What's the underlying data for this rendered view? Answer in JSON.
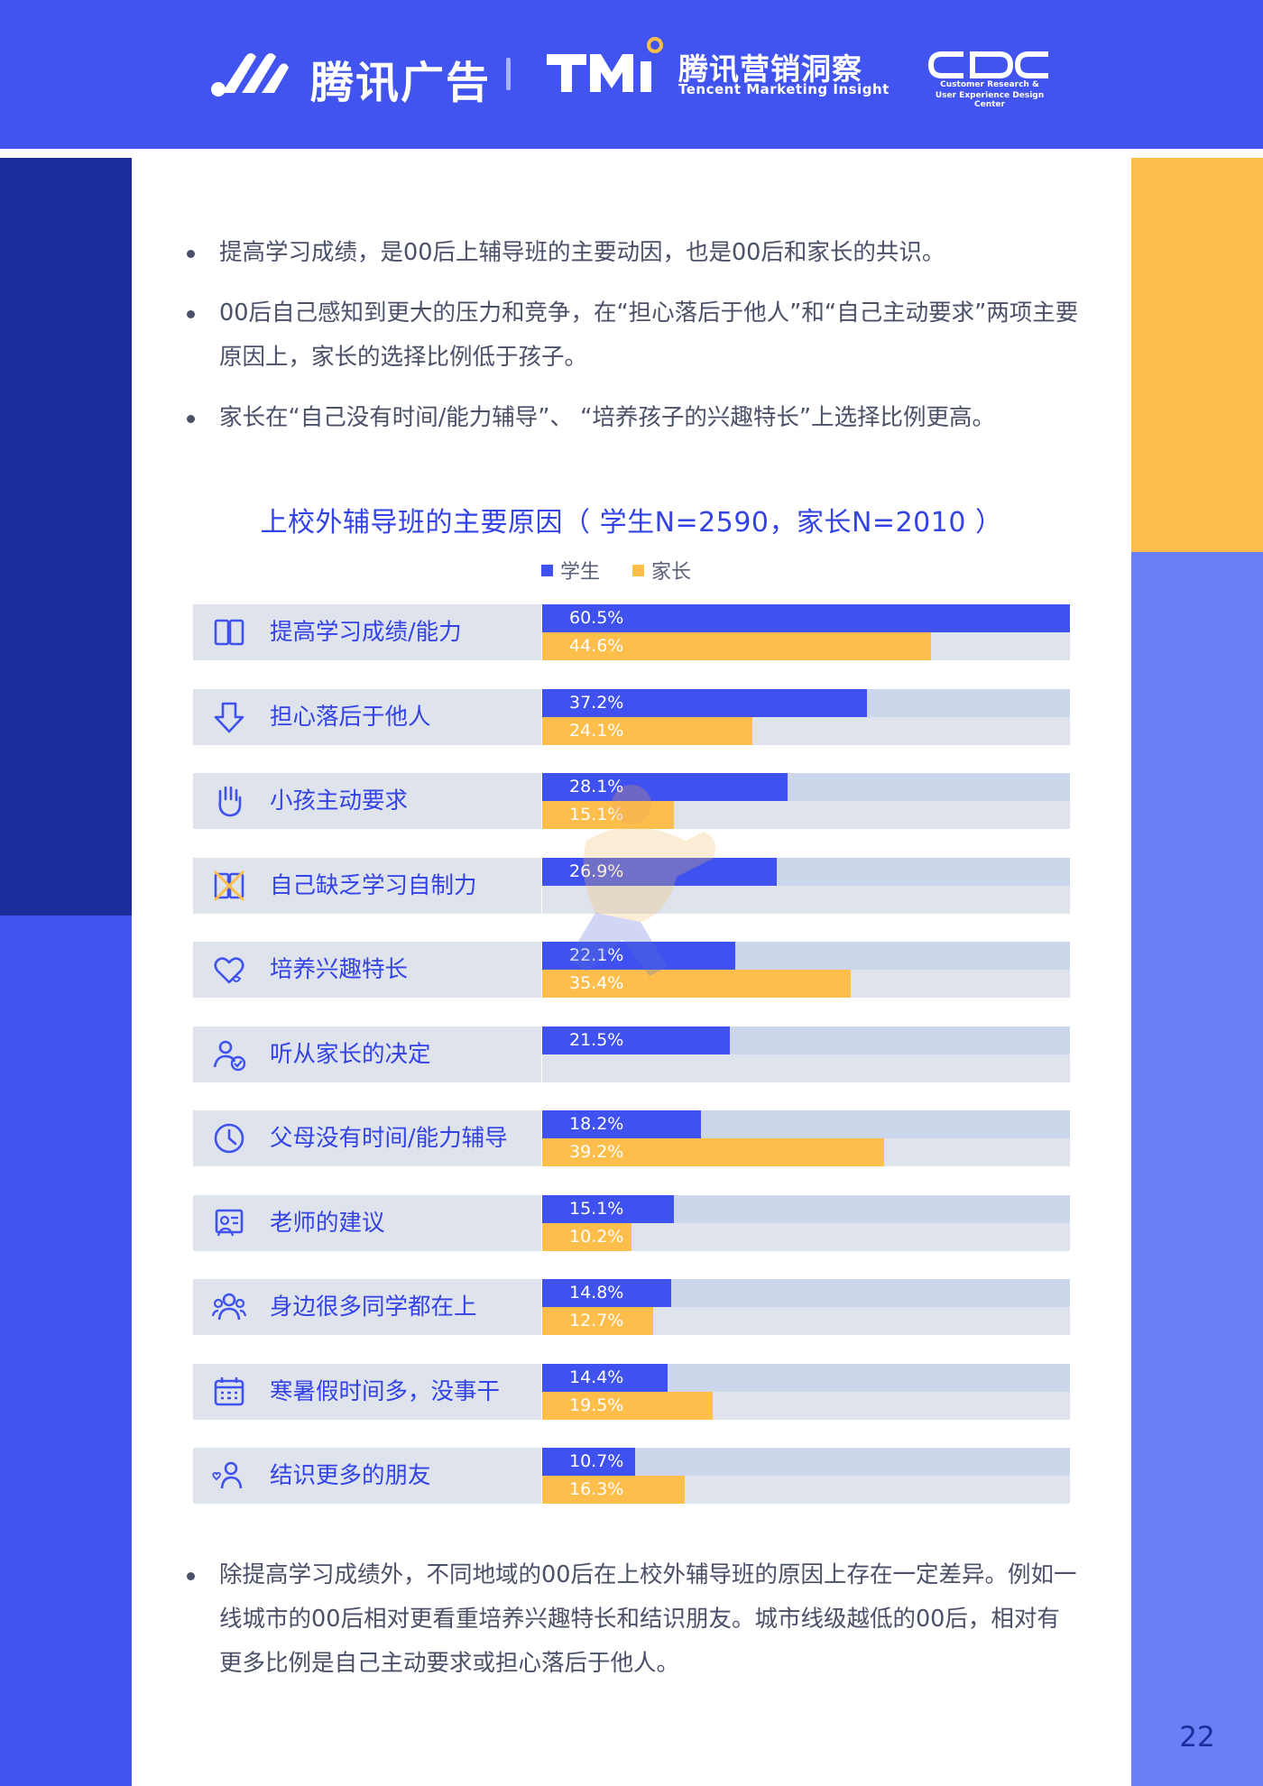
{
  "header": {
    "brand1": "腾讯广告",
    "brand2": "腾讯营销洞察",
    "brand2_sub": "Tencent Marketing Insight",
    "brand3_sub1": "Customer Research &",
    "brand3_sub2": "User Experience Design Center",
    "logo_tmi_text": "TMI",
    "logo_cdc_text": "CDC"
  },
  "bullets_top": [
    "提高学习成绩，是00后上辅导班的主要动因，也是00后和家长的共识。",
    "00后自己感知到更大的压力和竞争，在“担心落后于他人”和“自己主动要求”两项主要原因上，家长的选择比例低于孩子。",
    "家长在“自己没有时间/能力辅导”、 “培养孩子的兴趣特长”上选择比例更高。"
  ],
  "bullets_bottom": [
    "除提高学习成绩外，不同地域的00后在上校外辅导班的原因上存在一定差异。例如一线城市的00后相对更看重培养兴趣特长和结识朋友。城市线级越低的00后，相对有更多比例是自己主动要求或担心落后于他人。"
  ],
  "page_number": "22",
  "colors": {
    "student": "#3f52ef",
    "parent": "#fdbe4c",
    "header": "#4254f0",
    "navy": "#1a2d9a"
  },
  "chart_data": {
    "type": "bar",
    "orientation": "horizontal",
    "title": "上校外辅导班的主要原因（ 学生N=2590，家长N=2010 ）",
    "legend": [
      "学生",
      "家长"
    ],
    "legend_position": "top",
    "xlim": [
      0,
      60.5
    ],
    "unit": "%",
    "categories": [
      "提高学习成绩/能力",
      "担心落后于他人",
      "小孩主动要求",
      "自己缺乏学习自制力",
      "培养兴趣特长",
      "听从家长的决定",
      "父母没有时间/能力辅导",
      "老师的建议",
      "身边很多同学都在上",
      "寒暑假时间多，没事干",
      "结识更多的朋友"
    ],
    "icons": [
      "book-icon",
      "arrow-down-icon",
      "raised-hand-icon",
      "crossed-book-icon",
      "heart-icon",
      "people-check-icon",
      "clock-icon",
      "teacher-board-icon",
      "group-icon",
      "calendar-icon",
      "friends-heart-icon"
    ],
    "series": [
      {
        "name": "学生",
        "values": [
          60.5,
          37.2,
          28.1,
          26.9,
          22.1,
          21.5,
          18.2,
          15.1,
          14.8,
          14.4,
          10.7
        ],
        "labels": [
          "60.5%",
          "37.2%",
          "28.1%",
          "26.9%",
          "22.1%",
          "21.5%",
          "18.2%",
          "15.1%",
          "14.8%",
          "14.4%",
          "10.7%"
        ]
      },
      {
        "name": "家长",
        "values": [
          44.6,
          24.1,
          15.1,
          null,
          35.4,
          null,
          39.2,
          10.2,
          12.7,
          19.5,
          16.3
        ],
        "labels": [
          "44.6%",
          "24.1%",
          "15.1%",
          null,
          "35.4%",
          null,
          "39.2%",
          "10.2%",
          "12.7%",
          "19.5%",
          "16.3%"
        ]
      }
    ]
  }
}
